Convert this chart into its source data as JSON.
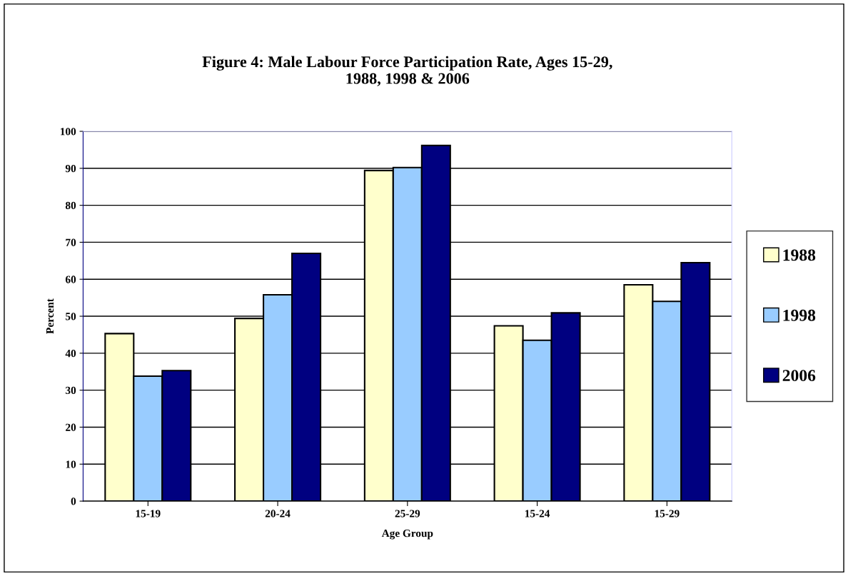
{
  "chart_data": {
    "type": "bar",
    "title": "Figure 4: Male Labour Force Participation Rate, Ages 15-29,\n1988, 1998 & 2006",
    "xlabel": "Age Group",
    "ylabel": "Percent",
    "categories": [
      "15-19",
      "20-24",
      "25-29",
      "15-24",
      "15-29"
    ],
    "series": [
      {
        "name": "1988",
        "color": "#ffffcc",
        "values": [
          45.3,
          49.4,
          89.4,
          47.4,
          58.5
        ]
      },
      {
        "name": "1998",
        "color": "#99ccff",
        "values": [
          33.8,
          55.8,
          90.2,
          43.5,
          54.0
        ]
      },
      {
        "name": "2006",
        "color": "#000080",
        "values": [
          35.3,
          67.0,
          96.2,
          50.9,
          64.5
        ]
      }
    ],
    "ylim": [
      0,
      100
    ],
    "yticks": [
      0,
      10,
      20,
      30,
      40,
      50,
      60,
      70,
      80,
      90,
      100
    ],
    "grid": "y",
    "legend": "right"
  }
}
